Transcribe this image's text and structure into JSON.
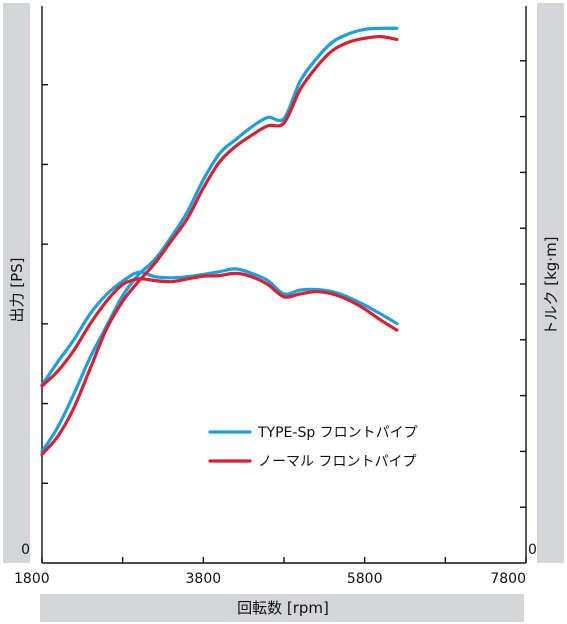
{
  "chart_data": {
    "type": "line",
    "xlabel": "回転数 [rpm]",
    "ylabel_left": "出力 [PS]",
    "ylabel_right": "トルク [kg·m]",
    "y_left_zero": "0",
    "y_right_zero": "0",
    "x_ticks": [
      "1800",
      "3800",
      "5800",
      "7800"
    ],
    "x_tick_values": [
      1800,
      3800,
      5800,
      7800
    ],
    "xlim": [
      1800,
      7800
    ],
    "left_minor_tick_count": 6,
    "right_minor_tick_count": 9,
    "legend_position": "center-right",
    "series": [
      {
        "name": "TYPE-Sp フロントパイプ",
        "color": "#1a9fe0",
        "curves": {
          "power_rpm": [
            1800,
            2000,
            2200,
            2400,
            2600,
            2800,
            3000,
            3200,
            3400,
            3600,
            3800,
            4000,
            4200,
            4400,
            4600,
            4800,
            5000,
            5200,
            5400,
            5600,
            5800,
            6000,
            6200
          ],
          "power_y": [
            0.2,
            0.245,
            0.305,
            0.37,
            0.425,
            0.48,
            0.518,
            0.545,
            0.585,
            0.63,
            0.688,
            0.735,
            0.76,
            0.783,
            0.8,
            0.798,
            0.865,
            0.905,
            0.935,
            0.95,
            0.958,
            0.96,
            0.96
          ],
          "torque_rpm": [
            1800,
            2000,
            2200,
            2400,
            2600,
            2800,
            3000,
            3200,
            3400,
            3600,
            3800,
            4000,
            4200,
            4400,
            4600,
            4800,
            5000,
            5200,
            5400,
            5600,
            5800,
            6000,
            6200
          ],
          "torque_y": [
            0.32,
            0.362,
            0.402,
            0.448,
            0.482,
            0.506,
            0.522,
            0.514,
            0.512,
            0.514,
            0.518,
            0.523,
            0.528,
            0.52,
            0.507,
            0.483,
            0.49,
            0.491,
            0.487,
            0.477,
            0.463,
            0.447,
            0.43
          ]
        }
      },
      {
        "name": "ノーマル フロントパイプ",
        "color": "#d8202e",
        "curves": {
          "power_rpm": [
            1800,
            2000,
            2200,
            2400,
            2600,
            2800,
            3000,
            3200,
            3400,
            3600,
            3800,
            4000,
            4200,
            4400,
            4600,
            4800,
            5000,
            5200,
            5400,
            5600,
            5800,
            6000,
            6200
          ],
          "power_y": [
            0.195,
            0.228,
            0.28,
            0.35,
            0.42,
            0.47,
            0.506,
            0.538,
            0.578,
            0.618,
            0.673,
            0.72,
            0.748,
            0.768,
            0.785,
            0.79,
            0.85,
            0.89,
            0.92,
            0.935,
            0.942,
            0.945,
            0.94
          ],
          "torque_rpm": [
            1800,
            2000,
            2200,
            2400,
            2600,
            2800,
            3000,
            3200,
            3400,
            3600,
            3800,
            4000,
            4200,
            4400,
            4600,
            4800,
            5000,
            5200,
            5400,
            5600,
            5800,
            6000,
            6200
          ],
          "torque_y": [
            0.318,
            0.345,
            0.383,
            0.43,
            0.47,
            0.5,
            0.51,
            0.507,
            0.505,
            0.51,
            0.515,
            0.516,
            0.52,
            0.514,
            0.5,
            0.478,
            0.483,
            0.487,
            0.483,
            0.472,
            0.456,
            0.436,
            0.418
          ]
        }
      }
    ]
  }
}
